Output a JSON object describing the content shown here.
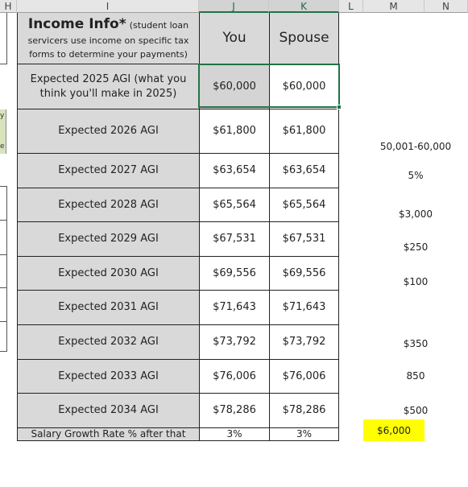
{
  "columns": [
    "H",
    "I",
    "J",
    "K",
    "L",
    "M",
    "N"
  ],
  "header": {
    "title": "Income Info*",
    "note": "(student loan servicers use income on specific tax forms to determine your payments)",
    "col_you": "You",
    "col_spouse": "Spouse"
  },
  "rows": [
    {
      "label": "Expected 2025 AGI (what you think you'll make in 2025)",
      "you": "$60,000",
      "spouse": "$60,000"
    },
    {
      "label": "Expected 2026 AGI",
      "you": "$61,800",
      "spouse": "$61,800"
    },
    {
      "label": "Expected 2027 AGI",
      "you": "$63,654",
      "spouse": "$63,654"
    },
    {
      "label": "Expected 2028 AGI",
      "you": "$65,564",
      "spouse": "$65,564"
    },
    {
      "label": "Expected 2029 AGI",
      "you": "$67,531",
      "spouse": "$67,531"
    },
    {
      "label": "Expected 2030 AGI",
      "you": "$69,556",
      "spouse": "$69,556"
    },
    {
      "label": "Expected 2031 AGI",
      "you": "$71,643",
      "spouse": "$71,643"
    },
    {
      "label": "Expected 2032 AGI",
      "you": "$73,792",
      "spouse": "$73,792"
    },
    {
      "label": "Expected 2033 AGI",
      "you": "$76,006",
      "spouse": "$76,006"
    },
    {
      "label": "Expected 2034 AGI",
      "you": "$78,286",
      "spouse": "$78,286"
    },
    {
      "label": "Salary Growth Rate % after that",
      "you": "3%",
      "spouse": "3%"
    }
  ],
  "column_m": [
    "50,001-60,000",
    "5%",
    "$3,000",
    "$250",
    "$100",
    "$350",
    "850",
    "$500",
    "$6,000"
  ],
  "fragments": [
    "y",
    "e"
  ],
  "colors": {
    "highlight": "#ffff00",
    "label_bg": "#d9d9d9",
    "selection": "#217346",
    "green_fragment": "#d8e4bc"
  }
}
